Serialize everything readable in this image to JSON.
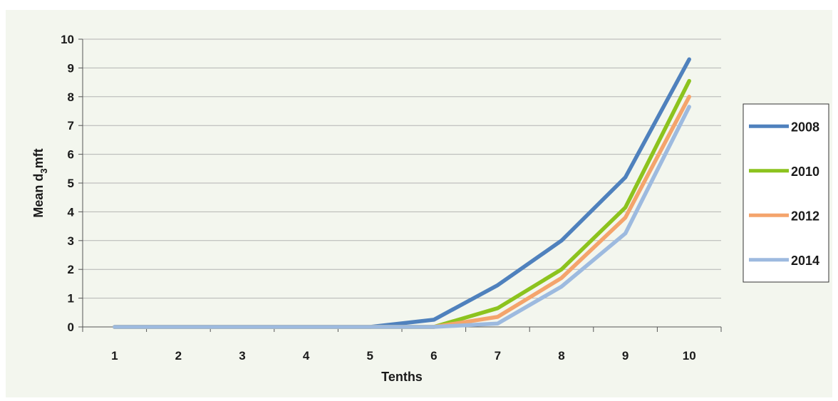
{
  "chart_data": {
    "type": "line",
    "title": "",
    "xlabel": "Tenths",
    "ylabel_main": "Mean d",
    "ylabel_sub": "3",
    "ylabel_tail": "mft",
    "x": [
      "1",
      "2",
      "3",
      "4",
      "5",
      "6",
      "7",
      "8",
      "9",
      "10"
    ],
    "y_ticks": [
      "0",
      "1",
      "2",
      "3",
      "4",
      "5",
      "6",
      "7",
      "8",
      "9",
      "10"
    ],
    "ylim": [
      0,
      10
    ],
    "grid": "horizontal",
    "legend_position": "right",
    "series": [
      {
        "name": "2008",
        "color": "#4f81bd",
        "values": [
          0,
          0,
          0,
          0,
          0,
          0.25,
          1.45,
          3.0,
          5.2,
          9.3
        ]
      },
      {
        "name": "2010",
        "color": "#8cc31e",
        "values": [
          0,
          0,
          0,
          0,
          0,
          0,
          0.65,
          2.0,
          4.15,
          8.55
        ]
      },
      {
        "name": "2012",
        "color": "#f4a46c",
        "values": [
          0,
          0,
          0,
          0,
          0,
          0,
          0.35,
          1.7,
          3.8,
          8.0
        ]
      },
      {
        "name": "2014",
        "color": "#9dbadf",
        "values": [
          0,
          0,
          0,
          0,
          0,
          0,
          0.12,
          1.4,
          3.25,
          7.65
        ]
      }
    ]
  }
}
